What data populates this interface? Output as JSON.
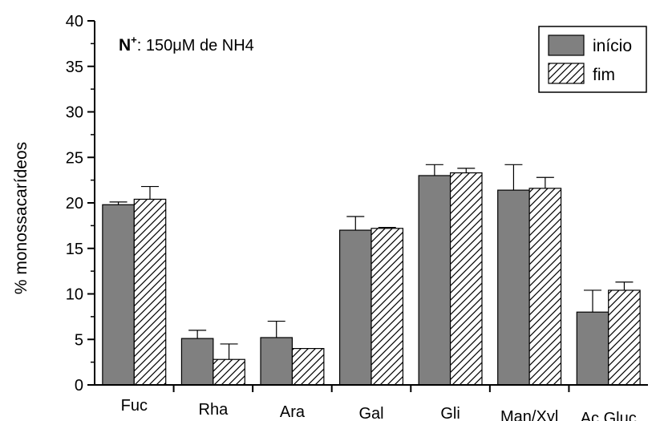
{
  "chart_data": {
    "type": "bar",
    "ylabel": "% monossacarídeos",
    "ylim": [
      0,
      40
    ],
    "yticks": [
      "0",
      "5",
      "10",
      "15",
      "20",
      "25",
      "30",
      "35",
      "40"
    ],
    "categories": [
      "Fuc",
      "Rha",
      "Ara",
      "Gal",
      "Gli",
      "Man/Xyl",
      "Ac.Gluc"
    ],
    "series": [
      {
        "name": "início",
        "fill": "solid",
        "values": [
          19.8,
          5.1,
          5.2,
          17.0,
          23.0,
          21.4,
          8.0
        ],
        "errors": [
          0.3,
          0.9,
          1.8,
          1.5,
          1.2,
          2.8,
          2.4
        ]
      },
      {
        "name": "fim",
        "fill": "hatched",
        "values": [
          20.4,
          2.8,
          4.0,
          17.2,
          23.3,
          21.6,
          10.4
        ],
        "errors": [
          1.4,
          1.7,
          0.0,
          0.1,
          0.5,
          1.2,
          0.9
        ]
      }
    ],
    "annotation": {
      "bold": "N",
      "superscript": "+",
      "text": ": 150μM de NH4"
    },
    "legend_position": "top-right",
    "grid": false,
    "colors": {
      "bar_solid": "#808080",
      "hatch": "#000000",
      "axis": "#000000"
    }
  }
}
